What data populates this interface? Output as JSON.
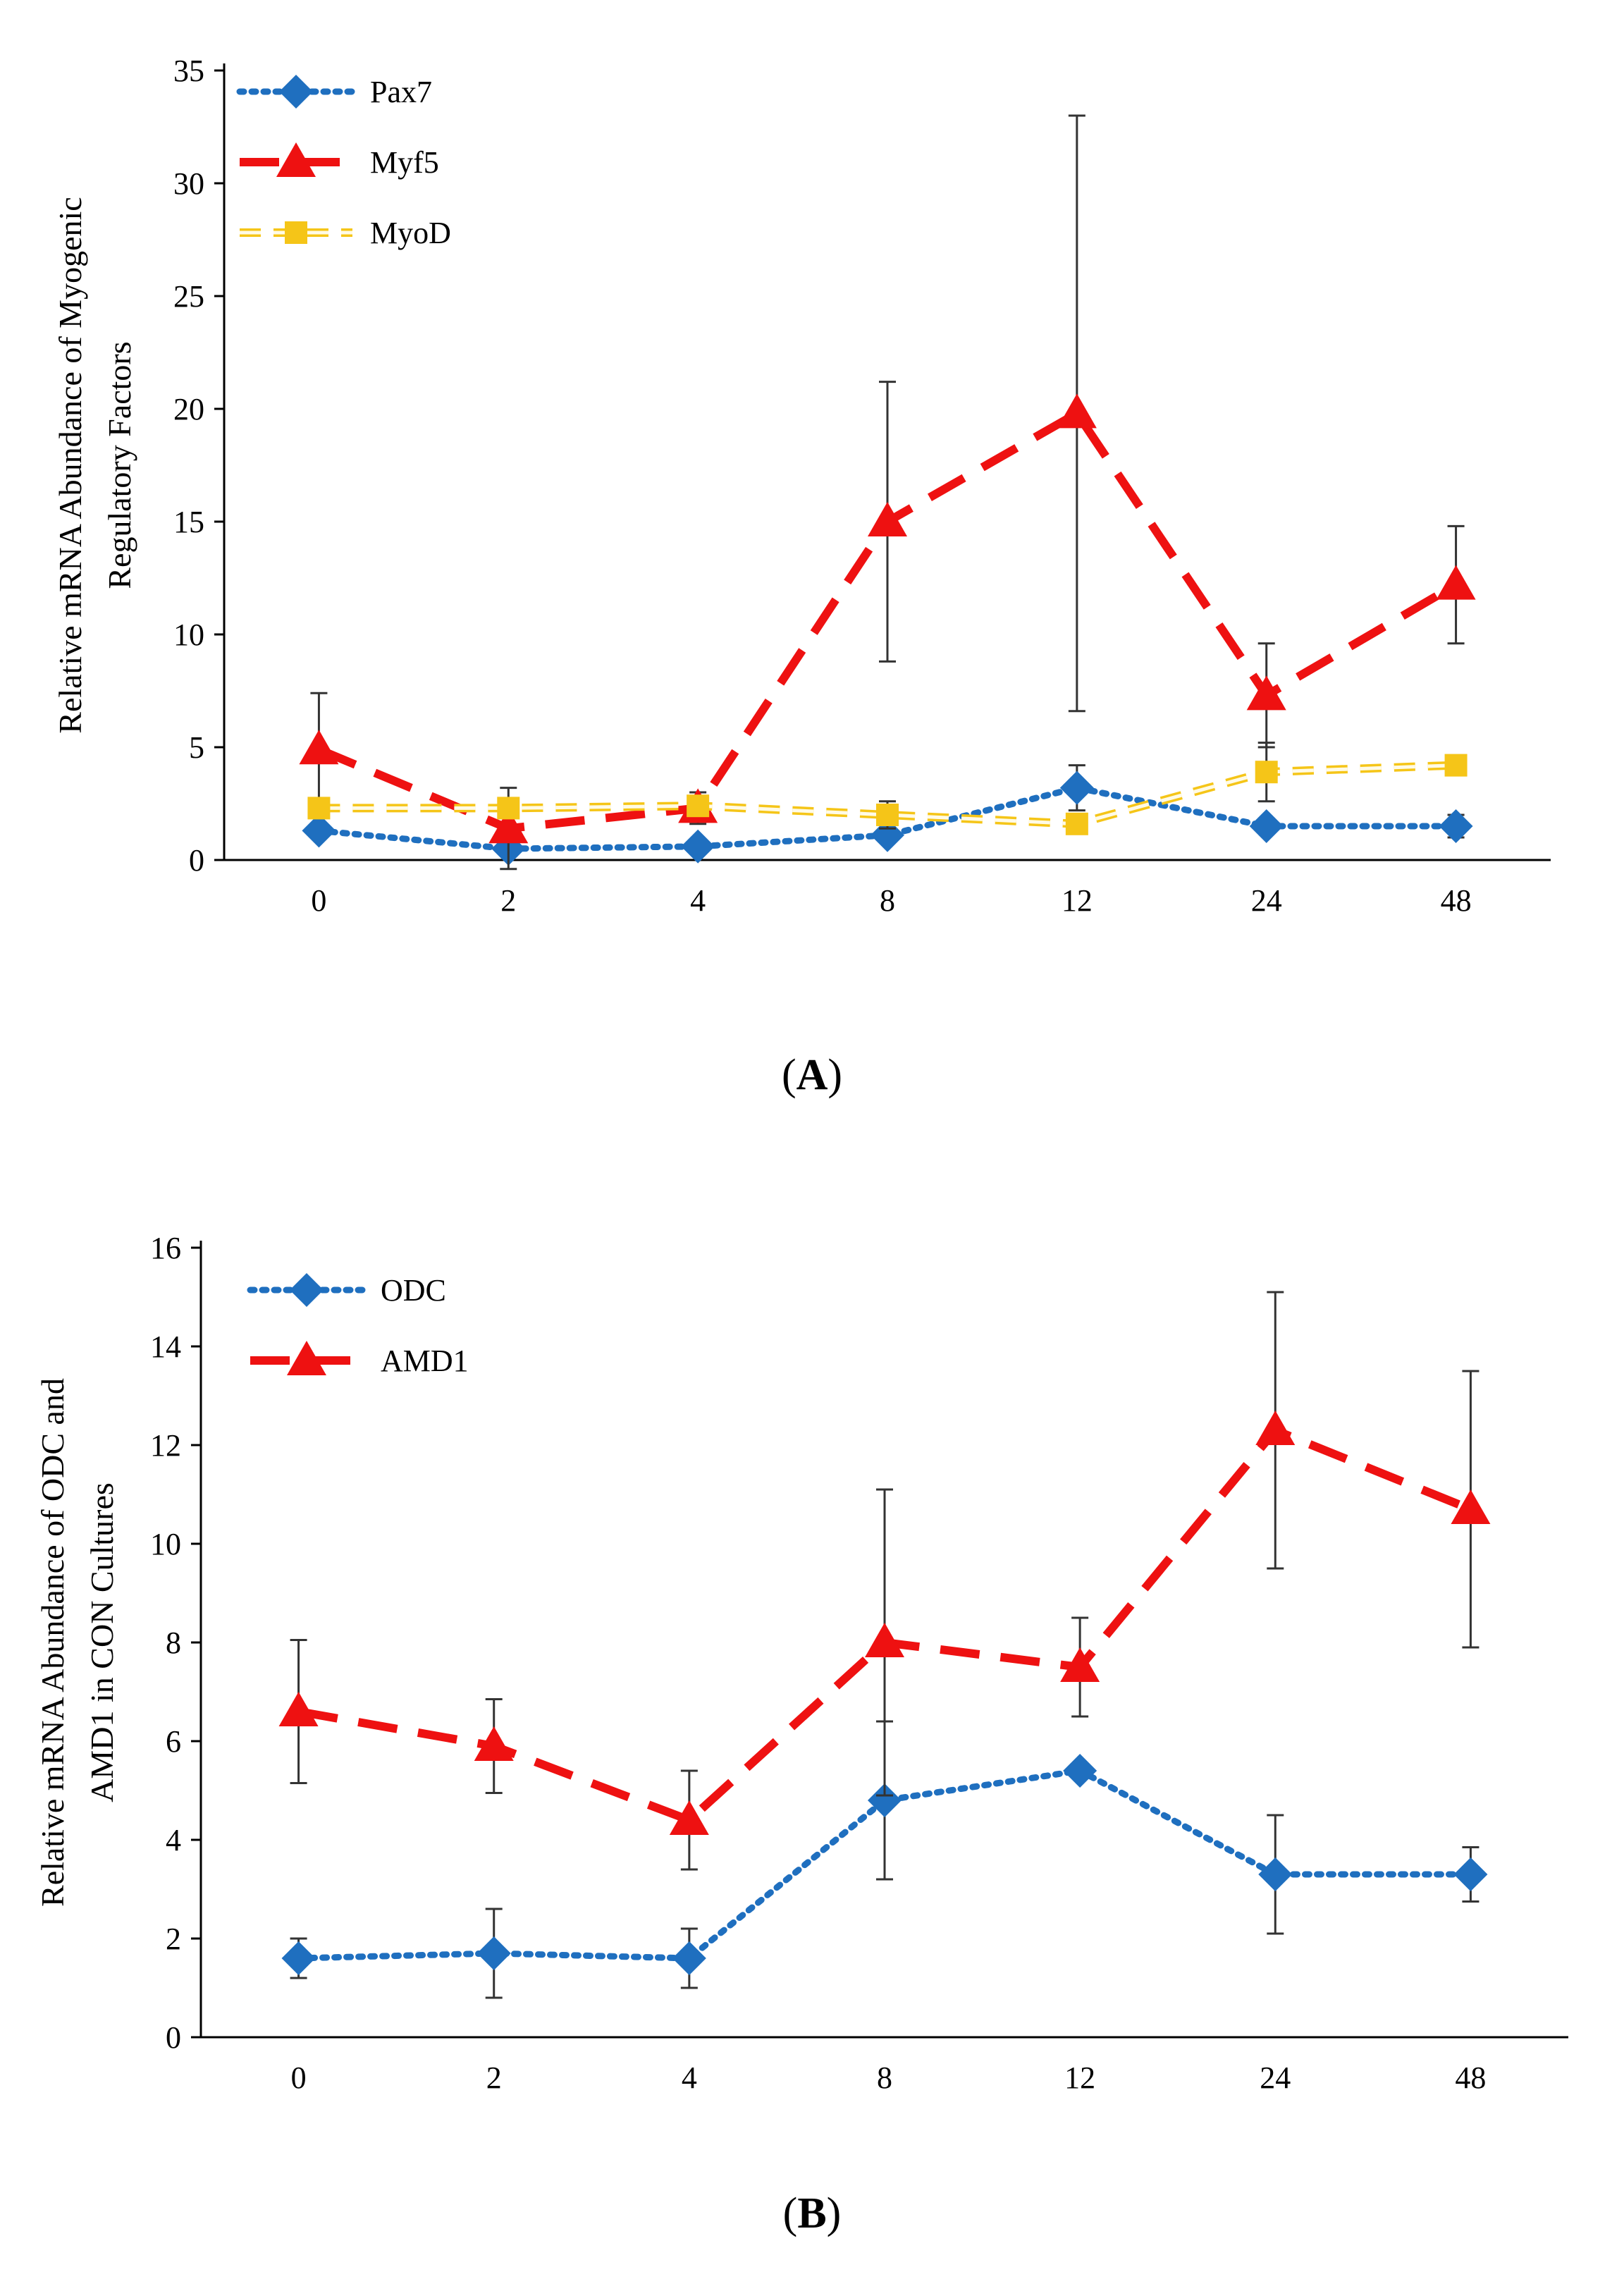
{
  "chart_data": [
    {
      "type": "line",
      "panel_label": "A",
      "ylabel_lines": [
        "Relative mRNA Abundance of Myogenic",
        "Regulatory Factors"
      ],
      "categories": [
        "0",
        "2",
        "4",
        "8",
        "12",
        "24",
        "48"
      ],
      "ylim": [
        0,
        35
      ],
      "yticks": [
        0,
        5,
        10,
        15,
        20,
        25,
        30,
        35
      ],
      "grid": false,
      "legend_position": "top-left",
      "series": [
        {
          "name": "Pax7",
          "color": "#1f6fbf",
          "line": "dotted",
          "marker": "diamond",
          "values": [
            1.3,
            0.5,
            0.6,
            1.1,
            3.2,
            1.5,
            1.5
          ],
          "error": [
            null,
            null,
            null,
            null,
            1.0,
            null,
            0.5
          ]
        },
        {
          "name": "Myf5",
          "color": "#ee1111",
          "line": "long-dash",
          "marker": "triangle",
          "values": [
            4.9,
            1.4,
            2.3,
            15.0,
            19.8,
            7.3,
            12.2
          ],
          "error": [
            2.5,
            1.8,
            0.7,
            6.2,
            13.2,
            2.3,
            2.6
          ]
        },
        {
          "name": "MyoD",
          "color": "#f5c518",
          "line": "hollow-dash",
          "marker": "square",
          "values": [
            2.3,
            2.3,
            2.4,
            2.0,
            1.6,
            3.9,
            4.2
          ],
          "error": [
            null,
            null,
            null,
            0.6,
            null,
            1.3,
            null
          ]
        }
      ]
    },
    {
      "type": "line",
      "panel_label": "B",
      "ylabel_lines": [
        "Relative mRNA Abundance of ODC and",
        "AMD1 in CON Cultures"
      ],
      "categories": [
        "0",
        "2",
        "4",
        "8",
        "12",
        "24",
        "48"
      ],
      "ylim": [
        0,
        16
      ],
      "yticks": [
        0,
        2,
        4,
        6,
        8,
        10,
        12,
        14,
        16
      ],
      "grid": false,
      "legend_position": "top-left",
      "series": [
        {
          "name": "ODC",
          "color": "#1f6fbf",
          "line": "dotted",
          "marker": "diamond",
          "values": [
            1.6,
            1.7,
            1.6,
            4.8,
            5.4,
            3.3,
            3.3
          ],
          "error": [
            0.4,
            0.9,
            0.6,
            1.6,
            null,
            1.2,
            0.55
          ]
        },
        {
          "name": "AMD1",
          "color": "#ee1111",
          "line": "long-dash",
          "marker": "triangle",
          "values": [
            6.6,
            5.9,
            4.4,
            8.0,
            7.5,
            12.3,
            10.7
          ],
          "error": [
            1.45,
            0.95,
            1.0,
            3.1,
            1.0,
            2.8,
            2.8
          ]
        }
      ]
    }
  ]
}
